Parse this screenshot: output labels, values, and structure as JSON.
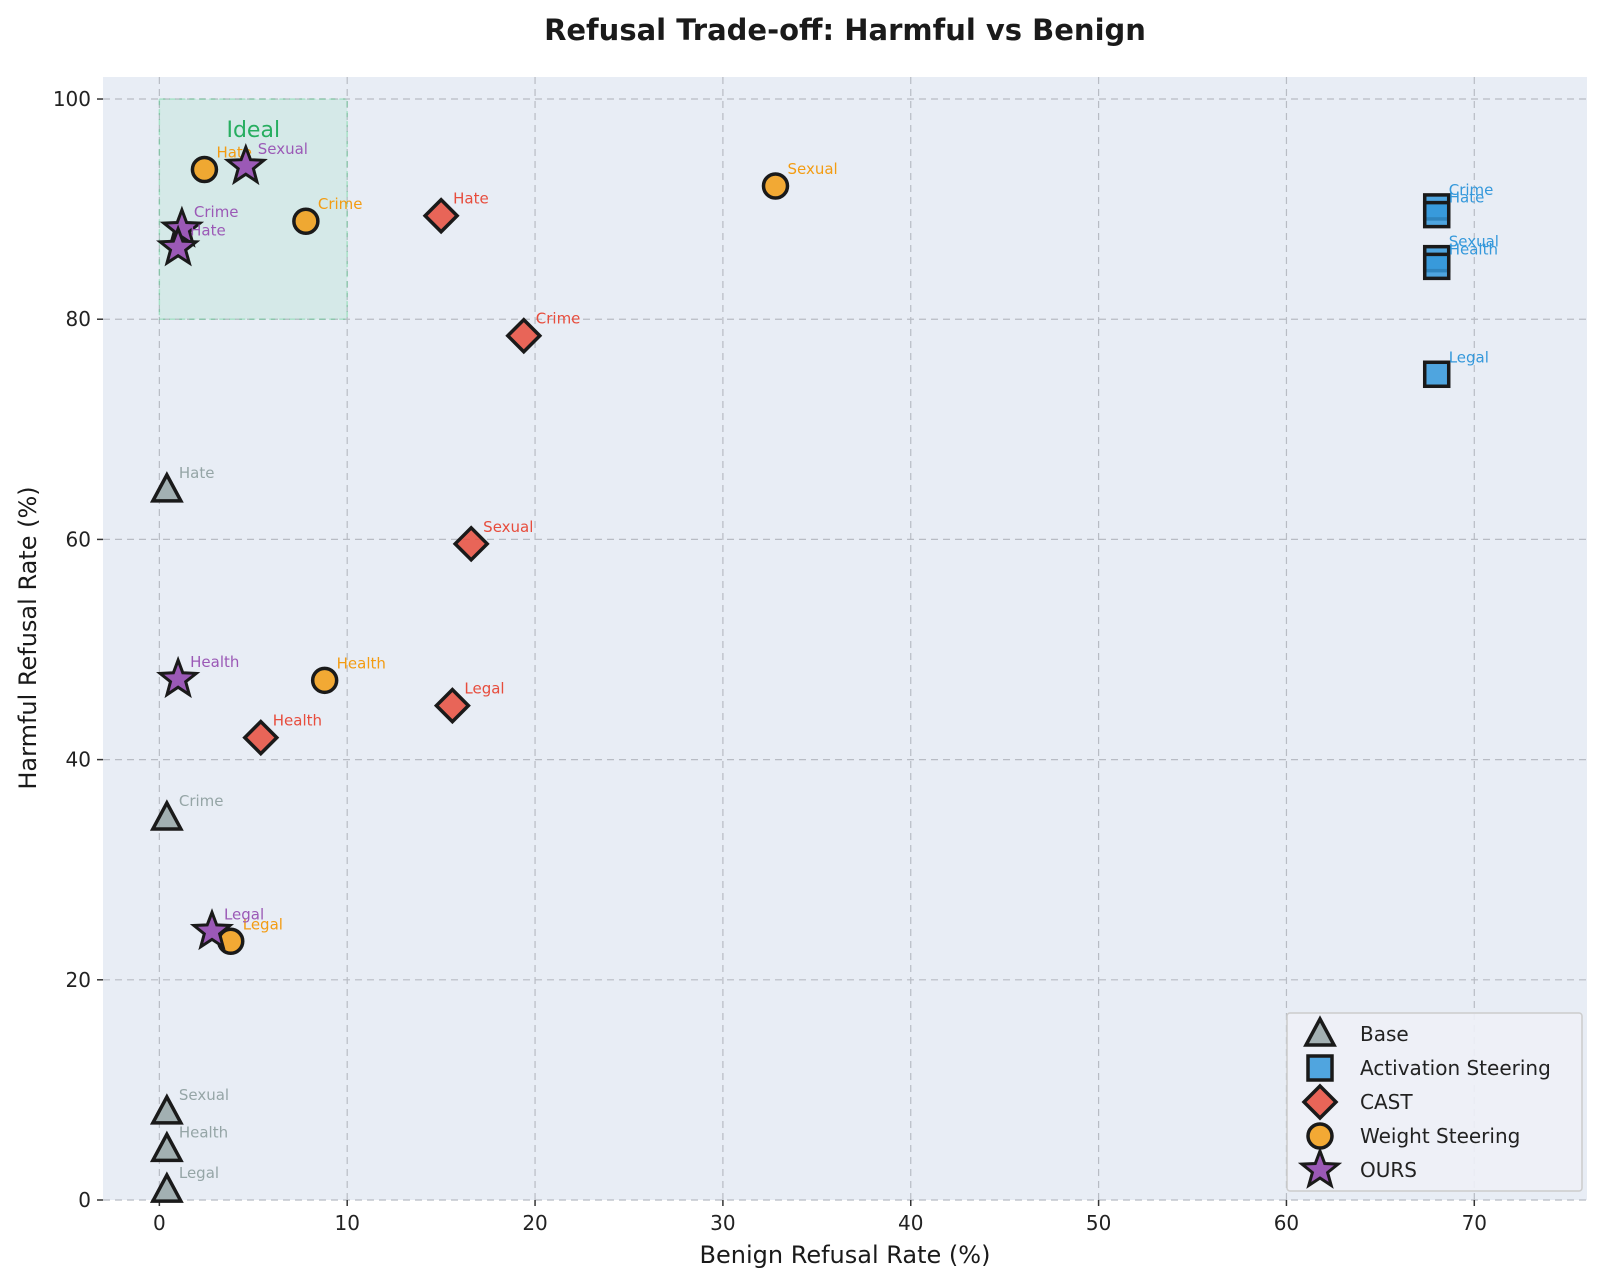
{
  "chart_data": {
    "type": "scatter",
    "title": "Refusal Trade-off: Harmful vs Benign",
    "xlabel": "Benign Refusal Rate (%)",
    "ylabel": "Harmful Refusal Rate (%)",
    "xlim": [
      -3,
      76
    ],
    "ylim": [
      0,
      102
    ],
    "xticks": [
      0,
      10,
      20,
      30,
      40,
      50,
      60,
      70
    ],
    "yticks": [
      0,
      20,
      40,
      60,
      80,
      100
    ],
    "grid": true,
    "legend_position": "bottom-right",
    "ideal_region": {
      "label": "Ideal",
      "x": [
        0,
        10
      ],
      "y": [
        80,
        100
      ],
      "color": "#2ecc71"
    },
    "series": [
      {
        "name": "Base",
        "marker": "triangle",
        "color": "#95a5a6",
        "points": [
          {
            "label": "Hate",
            "x": 0.4,
            "y": 64.5
          },
          {
            "label": "Crime",
            "x": 0.4,
            "y": 34.7
          },
          {
            "label": "Sexual",
            "x": 0.4,
            "y": 8.0
          },
          {
            "label": "Health",
            "x": 0.4,
            "y": 4.6
          },
          {
            "label": "Legal",
            "x": 0.4,
            "y": 0.9
          }
        ]
      },
      {
        "name": "Activation Steering",
        "marker": "square",
        "color": "#3498db",
        "points": [
          {
            "label": "Crime",
            "x": 68.0,
            "y": 90.2
          },
          {
            "label": "Hate",
            "x": 68.0,
            "y": 89.5
          },
          {
            "label": "Sexual",
            "x": 68.0,
            "y": 85.5
          },
          {
            "label": "Health",
            "x": 68.0,
            "y": 84.8
          },
          {
            "label": "Legal",
            "x": 68.0,
            "y": 75.0
          }
        ]
      },
      {
        "name": "CAST",
        "marker": "diamond",
        "color": "#e74c3c",
        "points": [
          {
            "label": "Hate",
            "x": 15.0,
            "y": 89.4
          },
          {
            "label": "Crime",
            "x": 19.4,
            "y": 78.5
          },
          {
            "label": "Sexual",
            "x": 16.6,
            "y": 59.6
          },
          {
            "label": "Legal",
            "x": 15.6,
            "y": 44.9
          },
          {
            "label": "Health",
            "x": 5.4,
            "y": 42.0
          }
        ]
      },
      {
        "name": "Weight Steering",
        "marker": "circle",
        "color": "#f39c12",
        "points": [
          {
            "label": "Hate",
            "x": 2.4,
            "y": 93.6
          },
          {
            "label": "Crime",
            "x": 7.8,
            "y": 88.9
          },
          {
            "label": "Sexual",
            "x": 32.8,
            "y": 92.1
          },
          {
            "label": "Health",
            "x": 8.8,
            "y": 47.2
          },
          {
            "label": "Legal",
            "x": 3.8,
            "y": 23.5
          }
        ]
      },
      {
        "name": "OURS",
        "marker": "star",
        "color": "#9b59b6",
        "points": [
          {
            "label": "Sexual",
            "x": 4.6,
            "y": 93.9
          },
          {
            "label": "Crime",
            "x": 1.2,
            "y": 88.2
          },
          {
            "label": "Hate",
            "x": 1.0,
            "y": 86.5
          },
          {
            "label": "Health",
            "x": 1.0,
            "y": 47.3
          },
          {
            "label": "Legal",
            "x": 2.8,
            "y": 24.4
          }
        ]
      }
    ]
  }
}
